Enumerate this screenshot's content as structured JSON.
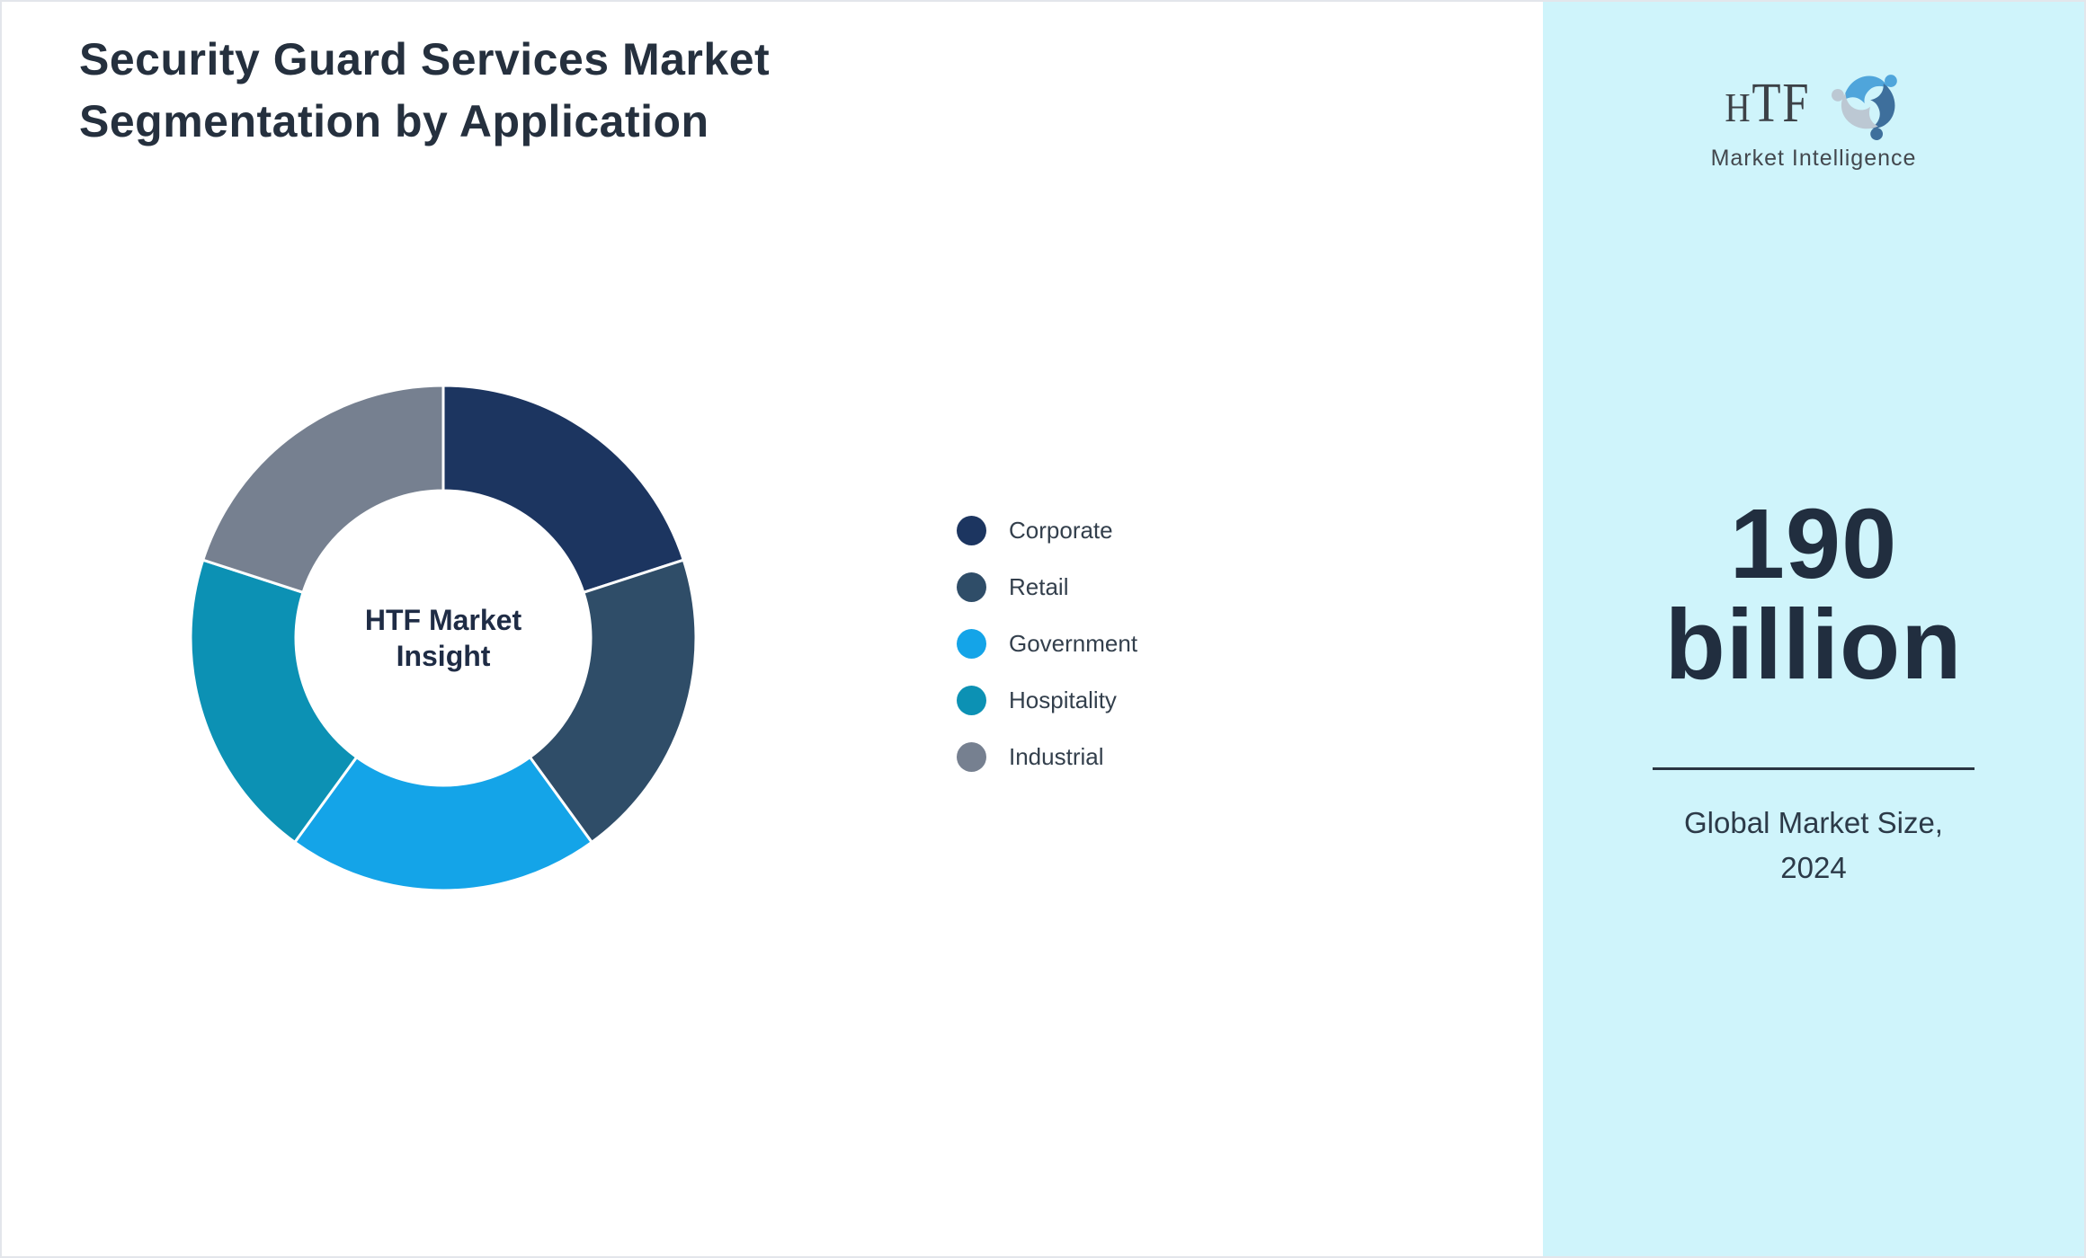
{
  "header": {
    "title_line1": "Security Guard Services Market",
    "title_line2": "Segmentation by Application"
  },
  "chart_data": {
    "type": "pie",
    "subtype": "donut",
    "title": "Security Guard Services Market Segmentation by Application",
    "center_label_line1": "HTF Market",
    "center_label_line2": "Insight",
    "start_angle_deg": 0,
    "direction": "clockwise",
    "inner_radius_ratio": 0.585,
    "slice_border_color": "#FFFFFF",
    "legend_position": "right",
    "categories": [
      "Corporate",
      "Retail",
      "Government",
      "Hospitality",
      "Industrial"
    ],
    "values": [
      20,
      20,
      20,
      20,
      20
    ],
    "series": [
      {
        "name": "Corporate",
        "value": 20,
        "color": "#1C3560"
      },
      {
        "name": "Retail",
        "value": 20,
        "color": "#2F4D68"
      },
      {
        "name": "Government",
        "value": 20,
        "color": "#14A4E8"
      },
      {
        "name": "Hospitality",
        "value": 20,
        "color": "#0C91B4"
      },
      {
        "name": "Industrial",
        "value": 20,
        "color": "#768090"
      }
    ]
  },
  "sidebar": {
    "background": "#CFF4FB",
    "logo": {
      "monogram": "HTF",
      "monogram_h": "H",
      "monogram_tf": "TF",
      "subtitle": "Market Intelligence",
      "swirl_colors": [
        "#4FA5DB",
        "#3E6F9C",
        "#BCC8D3"
      ]
    },
    "stat": {
      "value_line1": "190",
      "value_line2": "billion",
      "caption_line1": "Global Market Size,",
      "caption_line2": "2024"
    }
  },
  "colors": {
    "title_text": "#25303E",
    "legend_text": "#333F4C",
    "center_label_text": "#1F2C45",
    "stat_text": "#212E3F",
    "divider": "#2A3441",
    "page_border": "#E3E6EB"
  }
}
